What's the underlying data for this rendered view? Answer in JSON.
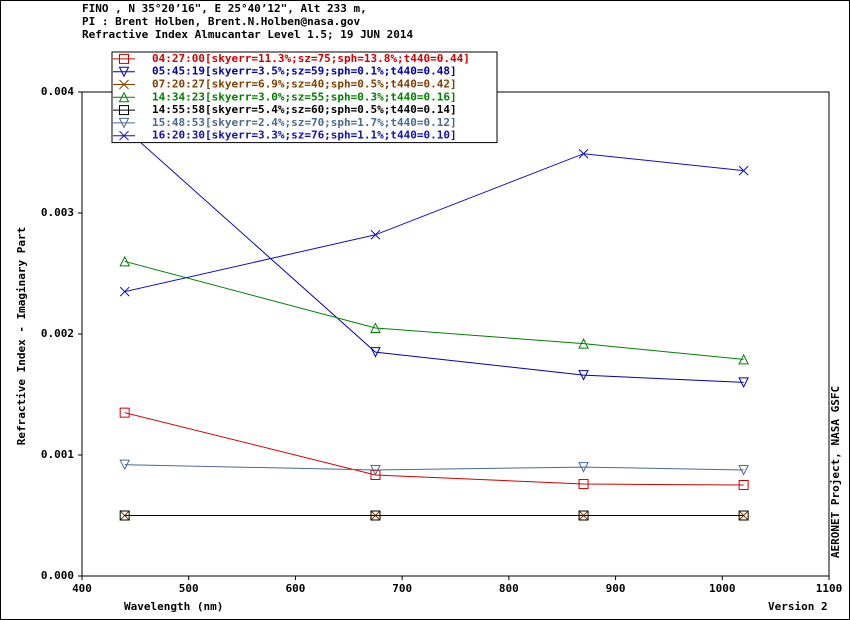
{
  "chart_data": {
    "type": "line",
    "header": [
      "FINO , N 35°20’16\", E 25°40’12\", Alt 233 m,",
      "PI : Brent Holben, Brent.N.Holben@nasa.gov",
      "Refractive Index Almucantar Level 1.5; 19 JUN 2014"
    ],
    "xlabel": "Wavelength (nm)",
    "ylabel": "Refractive Index - Imaginary Part",
    "version": "Version 2",
    "credit": "AERONET Project, NASA GSFC",
    "x": [
      440,
      675,
      870,
      1020
    ],
    "xlim": [
      400,
      1100
    ],
    "xticks": [
      400,
      500,
      600,
      700,
      800,
      900,
      1000,
      1100
    ],
    "ylim": [
      0,
      0.004
    ],
    "yticks": [
      {
        "value": 0,
        "label": "0.000"
      },
      0.001,
      0.002,
      0.003,
      0.004
    ],
    "series": [
      {
        "name": "04:27:00[skyerr=11.3%;sz=75;sph=13.8%;t440=0.44]",
        "color": "#d00000",
        "marker": "square",
        "values": [
          0.00135,
          0.000835,
          0.00076,
          0.000752
        ]
      },
      {
        "name": "05:45:19[skyerr=3.5%;sz=59;sph=0.1%;t440=0.48]",
        "color": "#0000b0",
        "marker": "down",
        "values": [
          0.0037,
          0.00185,
          0.00166,
          0.0016
        ]
      },
      {
        "name": "07:20:27[skyerr=6.9%;sz=40;sph=0.5%;t440=0.42]",
        "color": "#804000",
        "marker": "x",
        "values": [
          0.0005,
          0.0005,
          0.0005,
          0.0005
        ]
      },
      {
        "name": "14:34:23[skyerr=3.0%;sz=55;sph=0.3%;t440=0.16]",
        "color": "#008000",
        "marker": "up",
        "values": [
          0.0026,
          0.00205,
          0.00192,
          0.00179
        ]
      },
      {
        "name": "14:55:58[skyerr=5.4%;sz=60;sph=0.5%;t440=0.14]",
        "color": "#000000",
        "marker": "square",
        "values": [
          0.0005,
          0.0005,
          0.0005,
          0.0005
        ]
      },
      {
        "name": "15:48:53[skyerr=2.4%;sz=70;sph=1.7%;t440=0.12]",
        "color": "#4a6a90",
        "marker": "down",
        "values": [
          0.00092,
          0.000876,
          0.0009,
          0.000876
        ]
      },
      {
        "name": "16:20:30[skyerr=3.3%;sz=76;sph=1.1%;t440=0.10]",
        "color": "#1010c0",
        "marker": "x",
        "values": [
          0.00235,
          0.00282,
          0.00349,
          0.00335
        ]
      }
    ]
  }
}
